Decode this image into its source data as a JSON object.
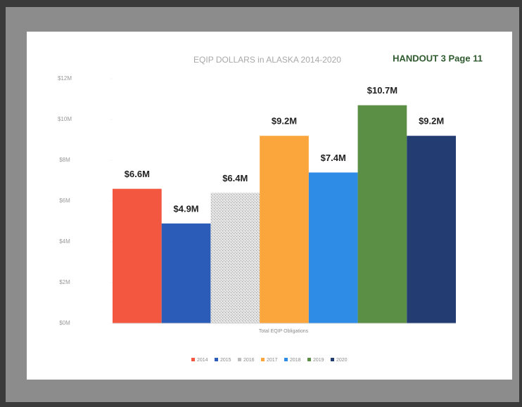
{
  "header": {
    "handout": "HANDOUT 3 Page 11"
  },
  "chart_data": {
    "type": "bar",
    "title": "EQIP DOLLARS in ALASKA 2014-2020",
    "x_label": "Total EQIP Obligations",
    "ylim": [
      0,
      12
    ],
    "yticks": [
      {
        "value": 0,
        "label": "$0M"
      },
      {
        "value": 2,
        "label": "$2M"
      },
      {
        "value": 4,
        "label": "$4M"
      },
      {
        "value": 6,
        "label": "$6M"
      },
      {
        "value": 8,
        "label": "$8M"
      },
      {
        "value": 10,
        "label": "$10M"
      },
      {
        "value": 12,
        "label": "$12M"
      }
    ],
    "legend": "bottom",
    "series": [
      {
        "name": "2014",
        "color": "#f4573f",
        "values": [
          6.6
        ],
        "value_labels": [
          "$6.6M"
        ]
      },
      {
        "name": "2015",
        "color": "#2a5cb8",
        "values": [
          4.9
        ],
        "value_labels": [
          "$4.9M"
        ]
      },
      {
        "name": "2016",
        "color": "#d4d4d4",
        "values": [
          6.4
        ],
        "value_labels": [
          "$6.4M"
        ]
      },
      {
        "name": "2017",
        "color": "#fba63c",
        "values": [
          9.2
        ],
        "value_labels": [
          "$9.2M"
        ]
      },
      {
        "name": "2018",
        "color": "#2e8be6",
        "values": [
          7.4
        ],
        "value_labels": [
          "$7.4M"
        ]
      },
      {
        "name": "2019",
        "color": "#5b8f45",
        "values": [
          10.7
        ],
        "value_labels": [
          "$10.7M"
        ]
      },
      {
        "name": "2020",
        "color": "#233d73",
        "values": [
          9.2
        ],
        "value_labels": [
          "$9.2M"
        ]
      }
    ]
  }
}
